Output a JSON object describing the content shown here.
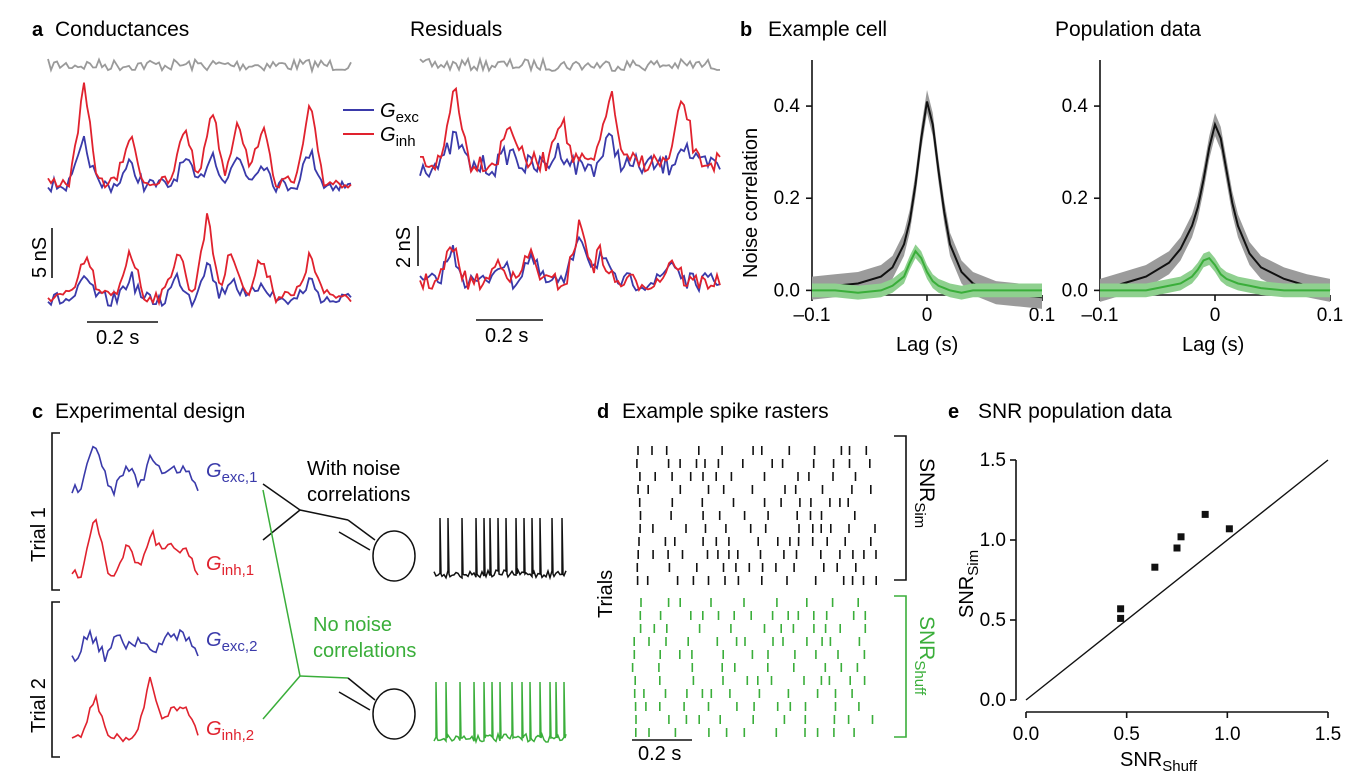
{
  "colors": {
    "exc": "#3a3aaa",
    "inh": "#e0222e",
    "gray": "#9a9a9a",
    "black": "#111111",
    "green": "#3aae3a",
    "green_band": "#8fd08f",
    "gray_band": "#9b9b9b"
  },
  "panel_a": {
    "letter": "a",
    "title": "Conductances",
    "residuals_title": "Residuals",
    "legend_exc": "G",
    "legend_exc_sub": "exc",
    "legend_inh": "G",
    "legend_inh_sub": "inh",
    "scale_left": "5 nS",
    "scale_right": "2 nS",
    "time_left": "0.2 s",
    "time_right": "0.2 s"
  },
  "panel_b": {
    "letter": "b",
    "example_title": "Example cell",
    "population_title": "Population data",
    "ylabel": "Noise correlation",
    "xlabel_left": "Lag (s)",
    "xlabel_right": "Lag (s)",
    "xticks": [
      "–0.1",
      "0",
      "0.1"
    ],
    "yticks": [
      "0.0",
      "0.2",
      "0.4"
    ]
  },
  "panel_c": {
    "letter": "c",
    "title": "Experimental design",
    "trial1": "Trial 1",
    "trial2": "Trial 2",
    "g": "G",
    "exc1_sub": "exc,1",
    "inh1_sub": "inh,1",
    "exc2_sub": "exc,2",
    "inh2_sub": "inh,2",
    "with_line1": "With noise",
    "with_line2": "correlations",
    "no_line1": "No noise",
    "no_line2": "correlations"
  },
  "panel_d": {
    "letter": "d",
    "title": "Example spike rasters",
    "ylabel": "Trials",
    "snr": "SNR",
    "sim_sub": "Sim",
    "shuff_sub": "Shuff",
    "time": "0.2 s"
  },
  "panel_e": {
    "letter": "e",
    "title": "SNR population data",
    "xlabel": "SNR",
    "xlabel_sub": "Shuff",
    "ylabel": "SNR",
    "ylabel_sub": "Sim",
    "xticks": [
      "0.0",
      "0.5",
      "1.0",
      "1.5"
    ],
    "yticks": [
      "0.0",
      "0.5",
      "1.0",
      "1.5"
    ]
  },
  "chart_data": [
    {
      "type": "line",
      "title": "Example cell",
      "xlabel": "Lag (s)",
      "ylabel": "Noise correlation",
      "xlim": [
        -0.1,
        0.1
      ],
      "ylim": [
        -0.01,
        0.5
      ],
      "x": [
        -0.1,
        -0.08,
        -0.06,
        -0.04,
        -0.03,
        -0.02,
        -0.015,
        -0.01,
        -0.005,
        0,
        0.005,
        0.01,
        0.015,
        0.02,
        0.03,
        0.04,
        0.06,
        0.08,
        0.1
      ],
      "series": [
        {
          "values": [
            0.005,
            0.01,
            0.015,
            0.03,
            0.05,
            0.1,
            0.15,
            0.23,
            0.33,
            0.41,
            0.36,
            0.26,
            0.17,
            0.1,
            0.04,
            0.015,
            -0.005,
            -0.01,
            -0.015
          ]
        },
        {
          "values": [
            0.0,
            0.0,
            -0.005,
            0.0,
            0.01,
            0.03,
            0.06,
            0.085,
            0.07,
            0.04,
            0.02,
            0.01,
            0.005,
            0.0,
            -0.005,
            0.0,
            0.0,
            0.0,
            0.0
          ]
        }
      ]
    },
    {
      "type": "line",
      "title": "Population data",
      "xlabel": "Lag (s)",
      "xlim": [
        -0.1,
        0.1
      ],
      "ylim": [
        -0.01,
        0.5
      ],
      "x": [
        -0.1,
        -0.08,
        -0.06,
        -0.04,
        -0.03,
        -0.02,
        -0.015,
        -0.01,
        -0.005,
        0,
        0.005,
        0.01,
        0.015,
        0.02,
        0.03,
        0.04,
        0.06,
        0.08,
        0.1
      ],
      "series": [
        {
          "values": [
            0.0,
            0.015,
            0.03,
            0.06,
            0.09,
            0.14,
            0.18,
            0.24,
            0.31,
            0.36,
            0.33,
            0.26,
            0.19,
            0.14,
            0.08,
            0.05,
            0.025,
            0.01,
            0.0
          ]
        },
        {
          "values": [
            0.0,
            0.0,
            0.0,
            0.01,
            0.015,
            0.03,
            0.045,
            0.065,
            0.07,
            0.055,
            0.035,
            0.025,
            0.02,
            0.015,
            0.01,
            0.005,
            0.0,
            0.0,
            0.0
          ]
        }
      ]
    },
    {
      "type": "scatter",
      "title": "SNR population data",
      "xlabel": "SNR Shuff",
      "ylabel": "SNR Sim",
      "xlim": [
        0,
        1.5
      ],
      "ylim": [
        0,
        1.5
      ],
      "x": [
        0.47,
        0.47,
        0.64,
        0.75,
        0.77,
        0.89,
        1.01
      ],
      "y": [
        0.51,
        0.57,
        0.83,
        0.95,
        1.02,
        1.16,
        1.07
      ]
    }
  ]
}
